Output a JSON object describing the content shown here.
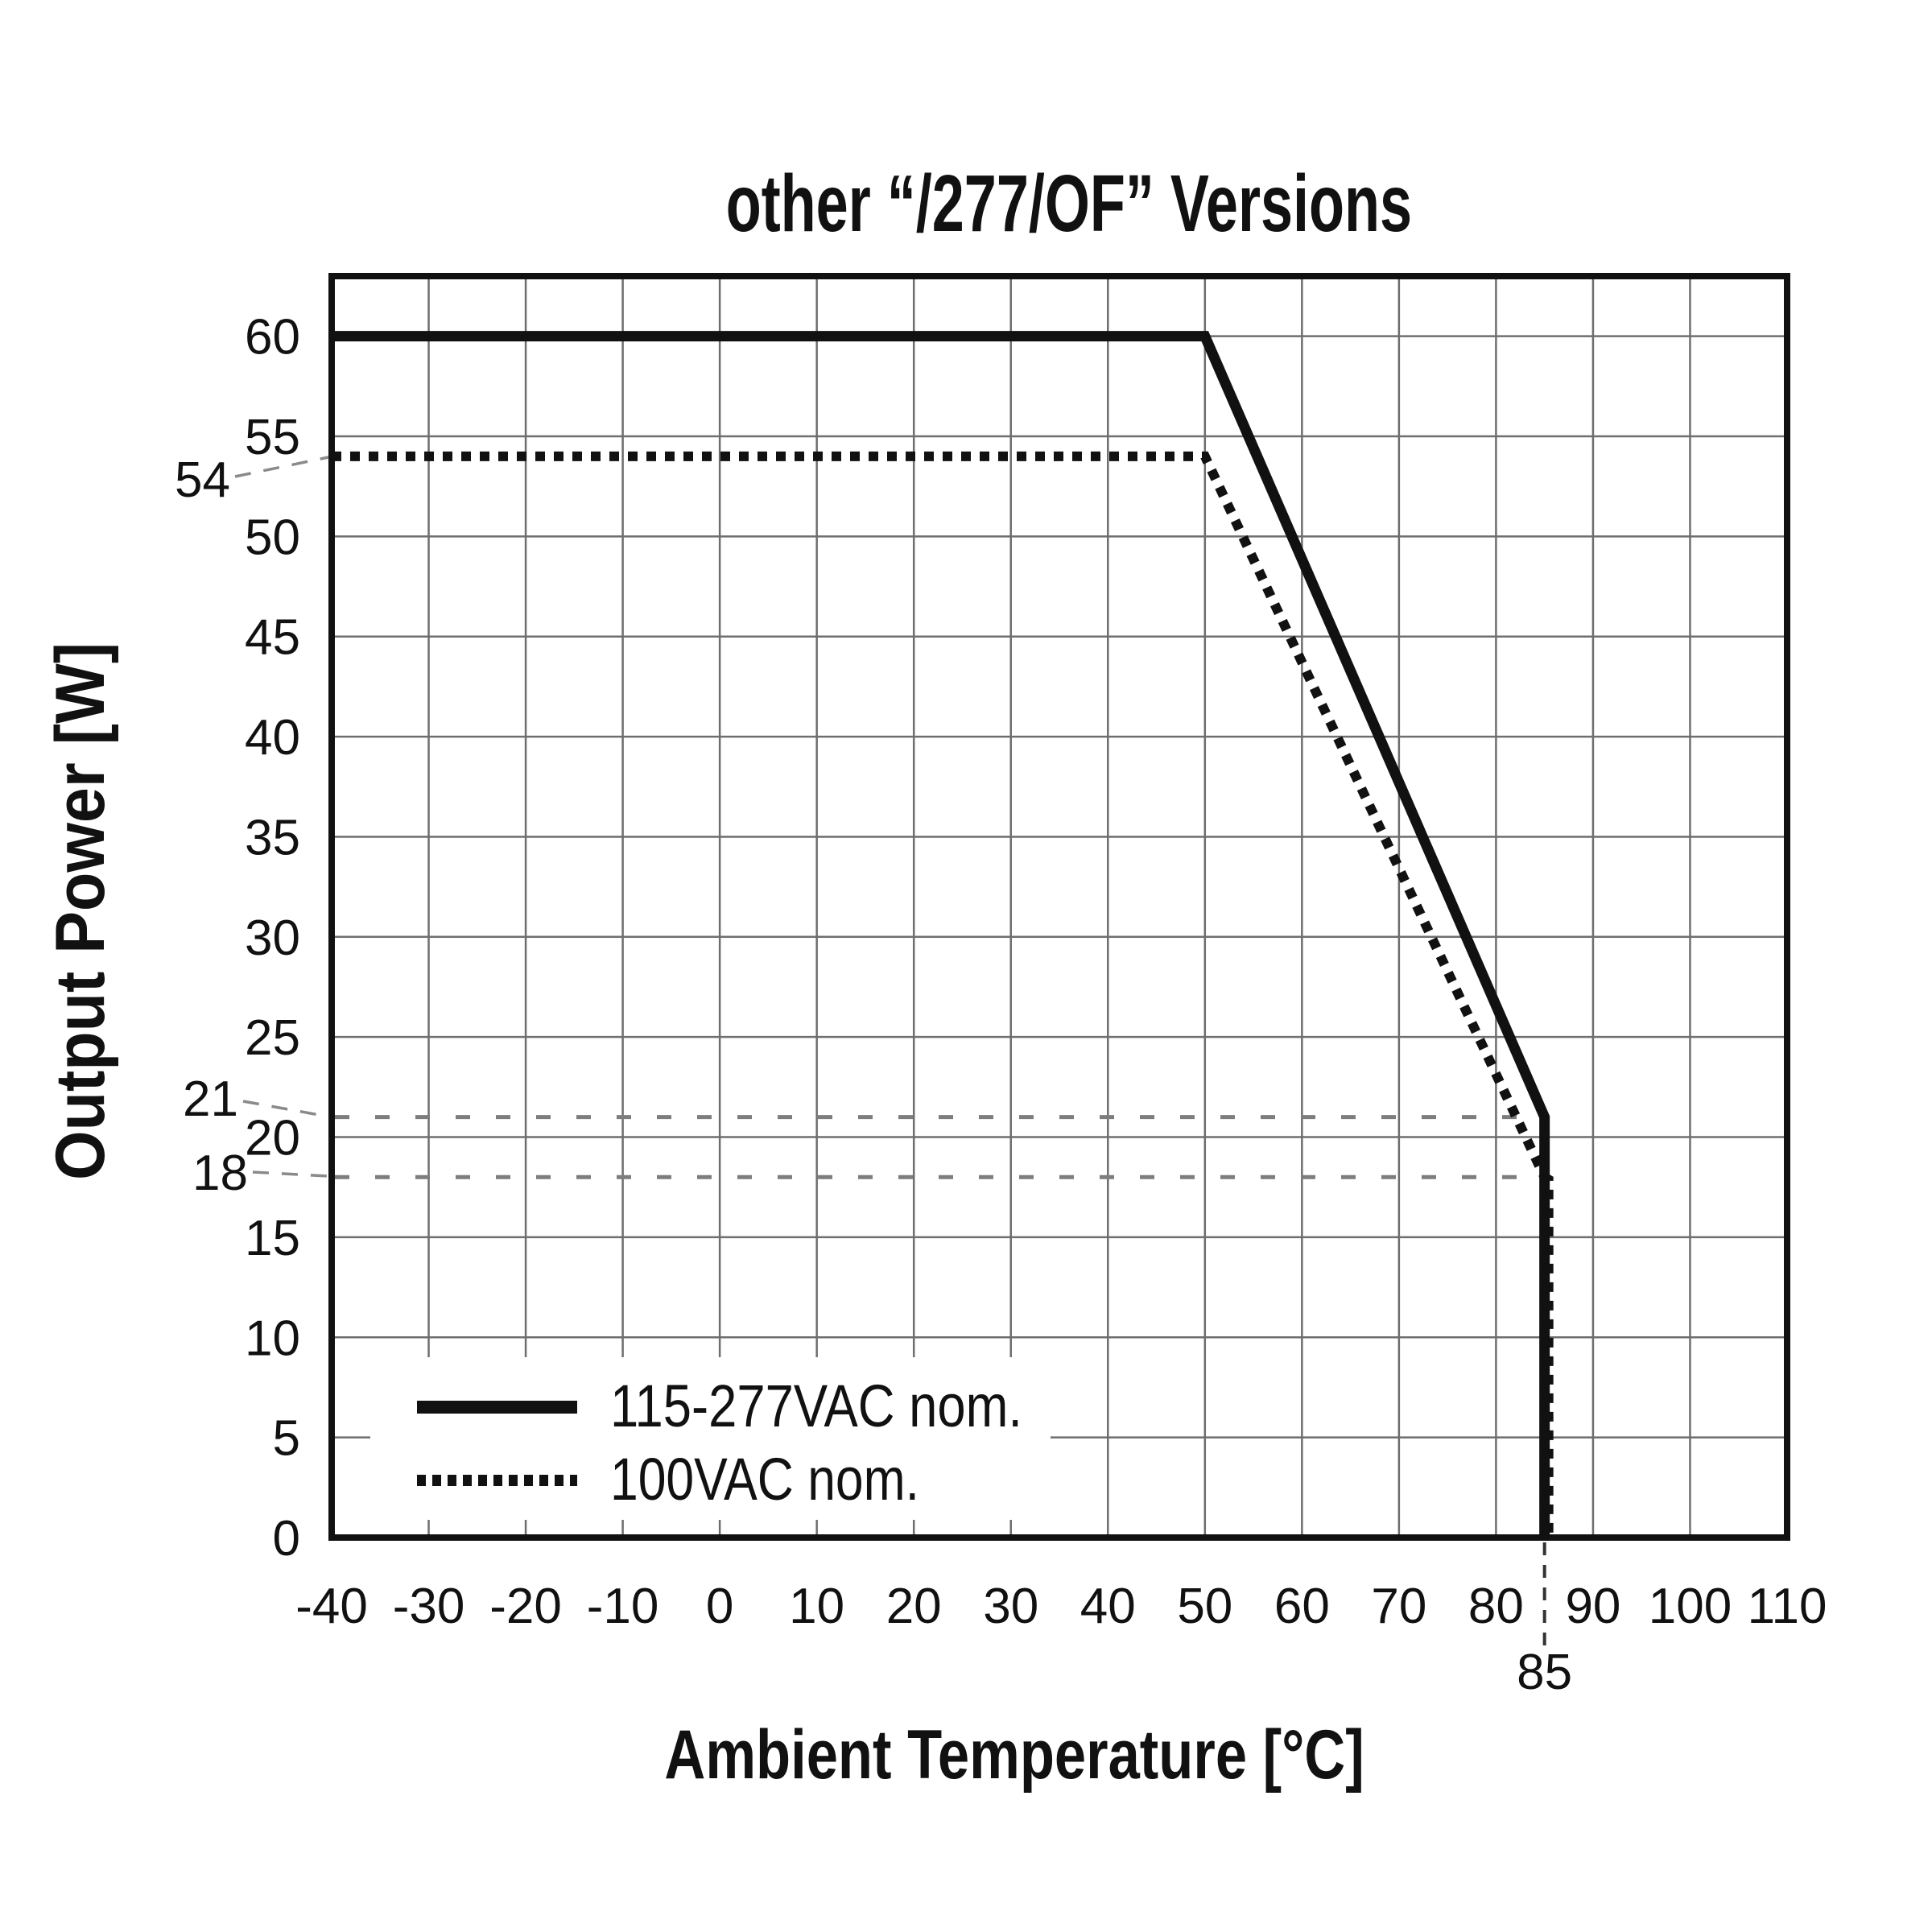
{
  "title": "other “/277/OF” Versions",
  "colors": {
    "background": "#ffffff",
    "line": "#111111",
    "grid": "#6e6e6e",
    "dashed_reference": "#7d7d7d",
    "leader": "#8a8a8a",
    "marker_85_line": "#333333",
    "text": "#111111"
  },
  "chart_data": {
    "type": "line",
    "title": "other “/277/OF” Versions",
    "xlabel": "Ambient Temperature [°C]",
    "ylabel": "Output Power [W]",
    "xlim": [
      -40,
      110
    ],
    "ylim": [
      0,
      63
    ],
    "x_ticks": [
      -40,
      -30,
      -20,
      -10,
      0,
      10,
      20,
      30,
      40,
      50,
      60,
      70,
      80,
      90,
      100,
      110
    ],
    "y_ticks": [
      0,
      5,
      10,
      15,
      20,
      25,
      30,
      35,
      40,
      45,
      50,
      55,
      60
    ],
    "grid": {
      "x_step": 10,
      "y_step": 5,
      "visible": true
    },
    "series": [
      {
        "name": "115-277VAC nom.",
        "style": "solid",
        "points": [
          [
            -40,
            60
          ],
          [
            50,
            60
          ],
          [
            85,
            21
          ],
          [
            85,
            0
          ]
        ]
      },
      {
        "name": "100VAC nom.",
        "style": "dotted",
        "points": [
          [
            -40,
            54
          ],
          [
            50,
            54
          ],
          [
            85,
            18
          ],
          [
            85,
            0
          ]
        ]
      }
    ],
    "annotations": {
      "y_marked_values": [
        54,
        21,
        18
      ],
      "y_dashed_reference_lines": [
        21,
        18
      ],
      "x_marked_value": 85
    },
    "legend": {
      "position": "inside-bottom-left",
      "items": [
        "115-277VAC nom.",
        "100VAC nom."
      ]
    }
  }
}
